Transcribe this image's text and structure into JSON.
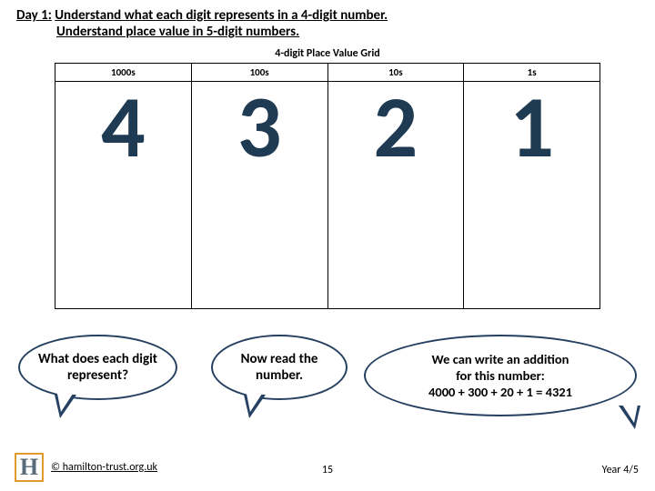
{
  "header": {
    "day_label": "Day 1:",
    "line1": "Understand what each digit represents in a 4-digit number.",
    "line2": "Understand place value in 5-digit numbers."
  },
  "grid": {
    "title": "4-digit Place Value Grid",
    "headers": [
      "1000s",
      "100s",
      "10s",
      "1s"
    ],
    "digits": [
      "4",
      "3",
      "2",
      "1"
    ]
  },
  "bubbles": {
    "b1": "What does each digit represent?",
    "b2": "Now read the number.",
    "b3_line1": "We can write an addition",
    "b3_line2": "for this number:",
    "b3_line3": "4000 + 300 + 20 + 1 = 4321"
  },
  "footer": {
    "logo_letter": "H",
    "copyright": "© hamilton-trust.org.uk",
    "page": "15",
    "year": "Year 4/5"
  },
  "colors": {
    "digit_color": "#1f3a53",
    "bubble_border": "#254061",
    "logo_border": "#e49b2e"
  }
}
